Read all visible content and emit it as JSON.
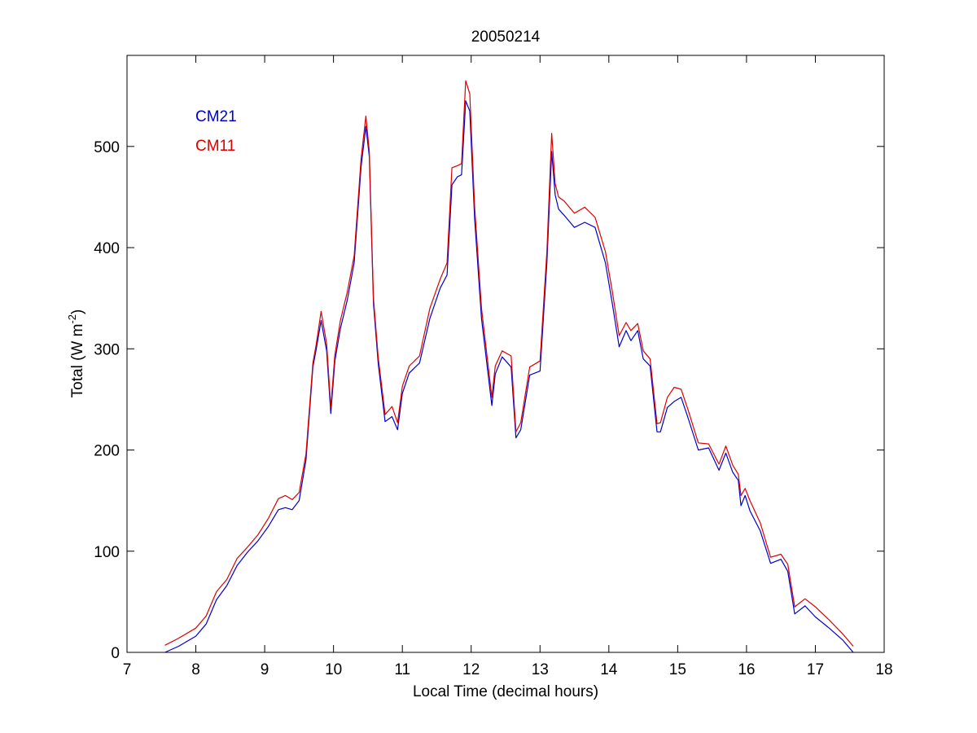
{
  "chart_data": {
    "type": "line",
    "title": "20050214",
    "xlabel": "Local Time (decimal hours)",
    "ylabel": "Total (W m",
    "ylabel_sup": "-2",
    "ylabel_suffix": ")",
    "xlim": [
      7,
      18
    ],
    "ylim": [
      0,
      590
    ],
    "xticks": [
      7,
      8,
      9,
      10,
      11,
      12,
      13,
      14,
      15,
      16,
      17,
      18
    ],
    "yticks": [
      0,
      100,
      200,
      300,
      400,
      500
    ],
    "grid": false,
    "legend_position": "top-left",
    "series": [
      {
        "name": "CM21",
        "color": "#0000cc",
        "x": [
          7.55,
          7.75,
          8.0,
          8.15,
          8.3,
          8.45,
          8.6,
          8.75,
          8.9,
          9.05,
          9.2,
          9.3,
          9.4,
          9.5,
          9.6,
          9.7,
          9.75,
          9.82,
          9.9,
          9.96,
          10.02,
          10.1,
          10.2,
          10.3,
          10.4,
          10.47,
          10.52,
          10.58,
          10.65,
          10.75,
          10.85,
          10.93,
          11.0,
          11.1,
          11.25,
          11.4,
          11.55,
          11.65,
          11.72,
          11.8,
          11.86,
          11.92,
          11.98,
          12.05,
          12.15,
          12.3,
          12.35,
          12.45,
          12.58,
          12.65,
          12.72,
          12.85,
          13.0,
          13.1,
          13.17,
          13.22,
          13.27,
          13.35,
          13.5,
          13.65,
          13.8,
          13.95,
          14.05,
          14.15,
          14.25,
          14.32,
          14.42,
          14.5,
          14.6,
          14.7,
          14.75,
          14.85,
          14.95,
          15.05,
          15.15,
          15.3,
          15.45,
          15.6,
          15.7,
          15.8,
          15.88,
          15.92,
          15.98,
          16.05,
          16.2,
          16.35,
          16.5,
          16.6,
          16.7,
          16.85,
          17.0,
          17.2,
          17.4,
          17.55
        ],
        "y": [
          0,
          6,
          16,
          28,
          52,
          66,
          86,
          99,
          110,
          124,
          141,
          143,
          141,
          150,
          190,
          282,
          300,
          328,
          298,
          236,
          288,
          320,
          348,
          385,
          480,
          520,
          490,
          345,
          285,
          228,
          233,
          220,
          256,
          276,
          286,
          330,
          360,
          373,
          462,
          470,
          472,
          545,
          535,
          428,
          330,
          244,
          275,
          292,
          282,
          212,
          220,
          274,
          278,
          385,
          495,
          452,
          438,
          432,
          420,
          425,
          420,
          385,
          345,
          302,
          318,
          308,
          318,
          290,
          283,
          218,
          218,
          242,
          248,
          252,
          232,
          200,
          202,
          180,
          197,
          178,
          170,
          145,
          155,
          140,
          120,
          88,
          92,
          80,
          38,
          46,
          35,
          24,
          12,
          0
        ]
      },
      {
        "name": "CM11",
        "color": "#dd0000",
        "x": [
          7.55,
          7.75,
          8.0,
          8.15,
          8.3,
          8.45,
          8.6,
          8.75,
          8.9,
          9.05,
          9.2,
          9.3,
          9.4,
          9.5,
          9.6,
          9.7,
          9.75,
          9.82,
          9.9,
          9.96,
          10.02,
          10.1,
          10.2,
          10.3,
          10.4,
          10.47,
          10.52,
          10.58,
          10.65,
          10.75,
          10.85,
          10.93,
          11.0,
          11.1,
          11.25,
          11.4,
          11.55,
          11.65,
          11.72,
          11.8,
          11.86,
          11.92,
          11.98,
          12.05,
          12.15,
          12.3,
          12.35,
          12.45,
          12.58,
          12.65,
          12.72,
          12.85,
          13.0,
          13.1,
          13.17,
          13.22,
          13.27,
          13.35,
          13.5,
          13.65,
          13.8,
          13.95,
          14.05,
          14.15,
          14.25,
          14.32,
          14.42,
          14.5,
          14.6,
          14.7,
          14.75,
          14.85,
          14.95,
          15.05,
          15.15,
          15.3,
          15.45,
          15.6,
          15.7,
          15.8,
          15.88,
          15.92,
          15.98,
          16.05,
          16.2,
          16.35,
          16.5,
          16.6,
          16.7,
          16.85,
          17.0,
          17.2,
          17.4,
          17.55
        ],
        "y": [
          7,
          14,
          24,
          36,
          60,
          72,
          93,
          104,
          116,
          132,
          152,
          155,
          151,
          158,
          196,
          286,
          305,
          337,
          305,
          242,
          294,
          328,
          356,
          392,
          488,
          530,
          495,
          350,
          291,
          235,
          243,
          227,
          263,
          283,
          293,
          340,
          369,
          385,
          479,
          481,
          483,
          565,
          552,
          440,
          340,
          252,
          283,
          298,
          293,
          218,
          227,
          282,
          288,
          396,
          513,
          463,
          450,
          446,
          434,
          440,
          430,
          396,
          357,
          313,
          326,
          318,
          325,
          298,
          290,
          226,
          227,
          252,
          262,
          260,
          240,
          207,
          206,
          186,
          204,
          185,
          176,
          155,
          162,
          150,
          128,
          94,
          97,
          87,
          45,
          53,
          45,
          32,
          18,
          6
        ]
      }
    ]
  }
}
